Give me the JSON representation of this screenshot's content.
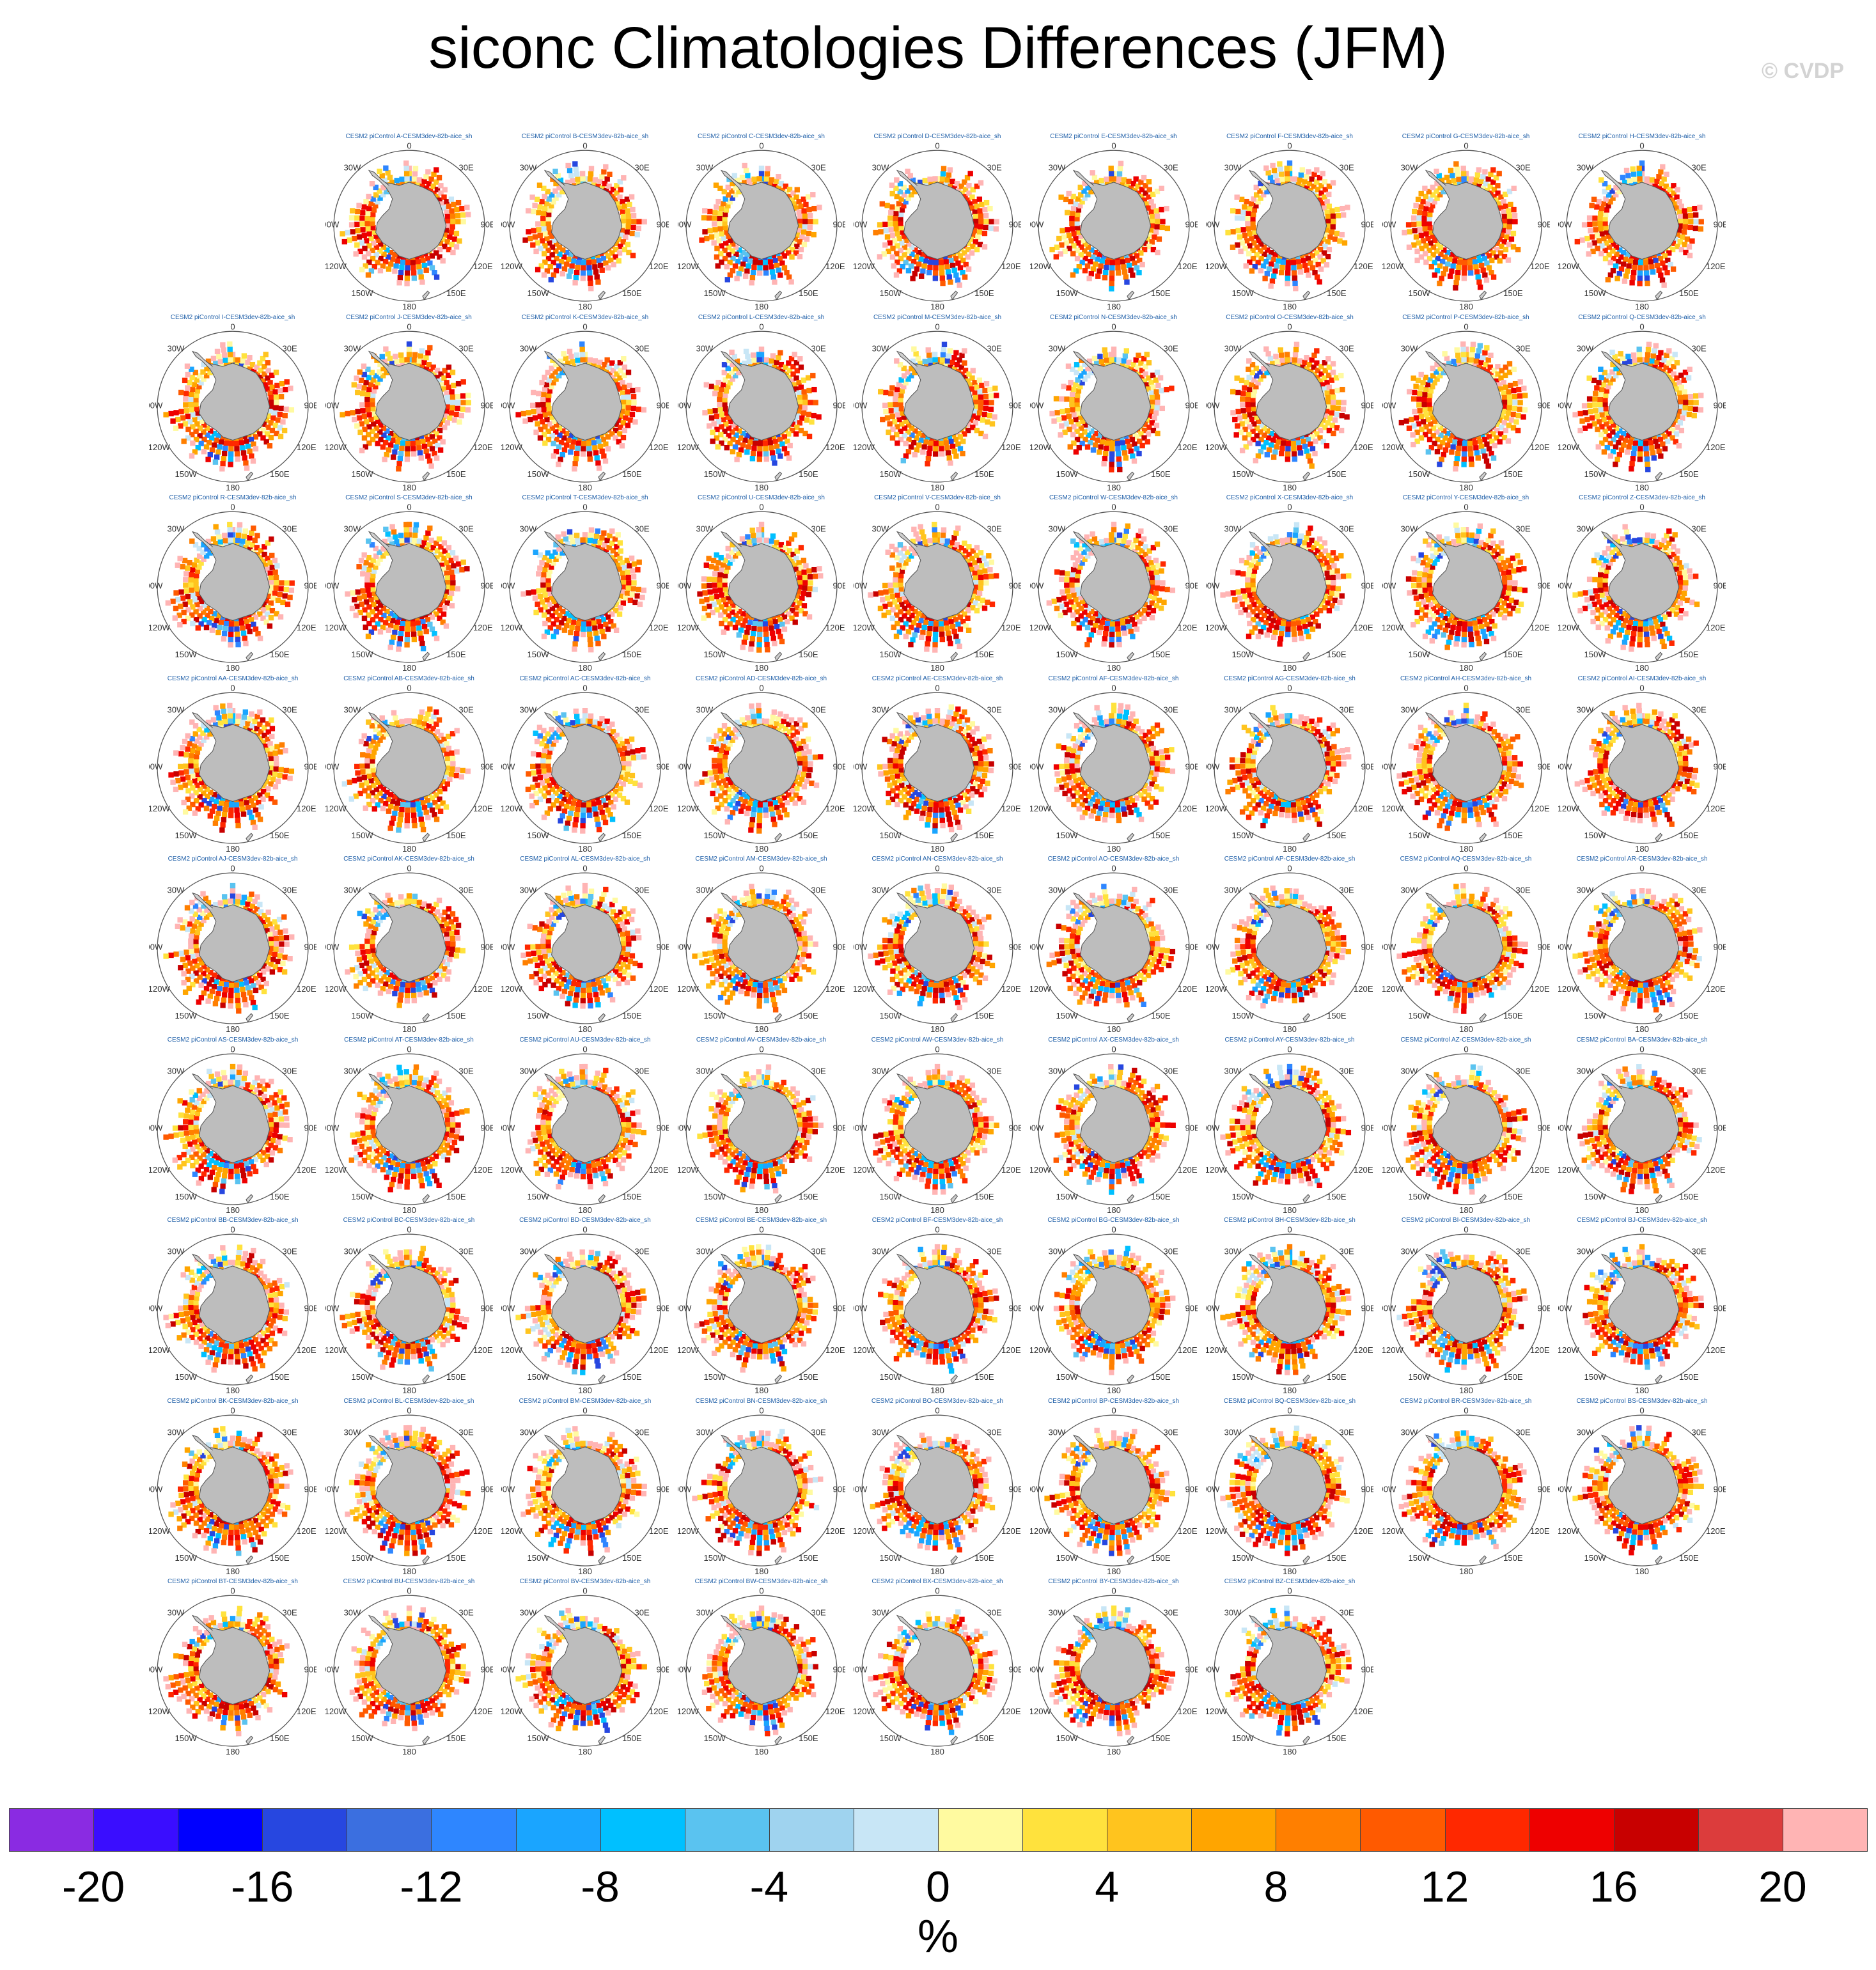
{
  "title": "siconc Climatologies Differences (JFM)",
  "watermark": "© CVDP",
  "chart_data": {
    "type": "heatmap",
    "title": "siconc Climatologies Differences (JFM)",
    "panel_title_prefix": "CESM2 piControl ",
    "panel_title_suffix": "-CESM3dev-82b-aice_sh",
    "panels": [
      "A",
      "B",
      "C",
      "D",
      "E",
      "F",
      "G",
      "H",
      "I",
      "J",
      "K",
      "L",
      "M",
      "N",
      "O",
      "P",
      "Q",
      "R",
      "S",
      "T",
      "U",
      "V",
      "W",
      "X",
      "Y",
      "Z",
      "AA",
      "AB",
      "AC",
      "AD",
      "AE",
      "AF",
      "AG",
      "AH",
      "AI",
      "AJ",
      "AK",
      "AL",
      "AM",
      "AN",
      "AO",
      "AP",
      "AQ",
      "AR",
      "AS",
      "AT",
      "AU",
      "AV",
      "AW",
      "AX",
      "AY",
      "AZ",
      "BA",
      "BB",
      "BC",
      "BD",
      "BE",
      "BF",
      "BG",
      "BH",
      "BI",
      "BJ",
      "BK",
      "BL",
      "BM",
      "BN",
      "BO",
      "BP",
      "BQ",
      "BR",
      "BS",
      "BT",
      "BU",
      "BV",
      "BW",
      "BX",
      "BY",
      "BZ"
    ],
    "map_labels": {
      "top": "0",
      "bottom": "180",
      "left_top": "30W",
      "left_mid": "90W",
      "left_bottom": "120W",
      "right_top": "30E",
      "right_mid": "90E",
      "right_bottom": "120E",
      "bottom_left": "150W",
      "bottom_right": "150E"
    },
    "colorbar": {
      "units": "%",
      "tick_labels": [
        "-20",
        "-16",
        "-12",
        "-8",
        "-4",
        "0",
        "4",
        "8",
        "12",
        "16",
        "20"
      ],
      "levels": [
        -20,
        -18,
        -16,
        -14,
        -12,
        -10,
        -8,
        -6,
        -4,
        -2,
        0,
        2,
        4,
        6,
        8,
        10,
        12,
        14,
        16,
        18,
        20
      ],
      "colors": [
        "#8a2be2",
        "#3a0dff",
        "#0000ff",
        "#2747e0",
        "#3b6fe0",
        "#2e86ff",
        "#1aa5ff",
        "#00c0ff",
        "#5ac3f0",
        "#9fd3ef",
        "#c8e6f6",
        "#fffaa0",
        "#ffe23d",
        "#ffc41e",
        "#ffa500",
        "#ff7f00",
        "#ff5a00",
        "#ff2800",
        "#ee0000",
        "#c80000",
        "#dc3c3c",
        "#ffb4b4"
      ]
    }
  }
}
